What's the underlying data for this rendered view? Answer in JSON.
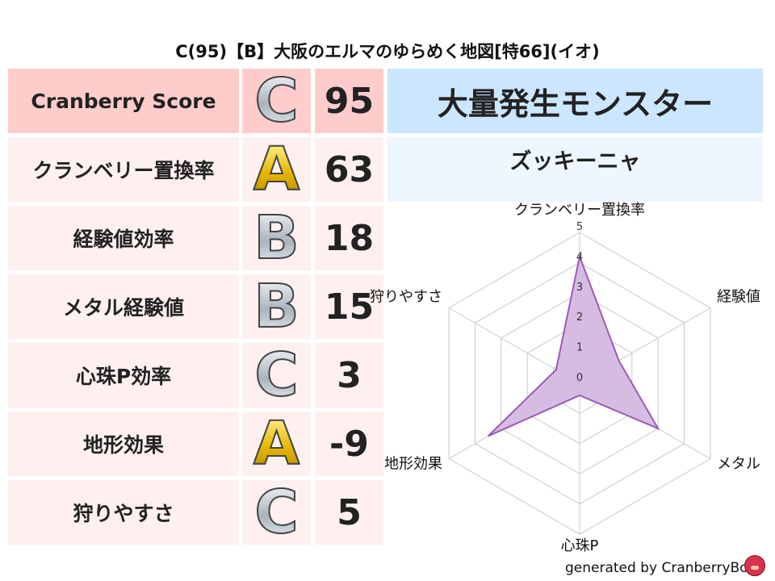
{
  "title": "C(95)【B】大阪のエルマのゆらめく地図[特66](イオ)",
  "rows": [
    {
      "label": "Cranberry Score",
      "grade": "C",
      "value": "95",
      "bg": "#ffcccc"
    },
    {
      "label": "クランベリー置換率",
      "grade": "A",
      "value": "63",
      "bg": "#fff0f0"
    },
    {
      "label": "経験値効率",
      "grade": "B",
      "value": "18",
      "bg": "#fff0f0"
    },
    {
      "label": "メタル経験値",
      "grade": "B",
      "value": "15",
      "bg": "#fff0f0"
    },
    {
      "label": "心珠P効率",
      "grade": "C",
      "value": "3",
      "bg": "#fff0f0"
    },
    {
      "label": "地形効果",
      "grade": "A",
      "value": "-9",
      "bg": "#fff0f0"
    },
    {
      "label": "狩りやすさ",
      "grade": "C",
      "value": "5",
      "bg": "#fff0f0"
    }
  ],
  "monster_header": "大量発生モンスター",
  "monster_name": "ズッキーニャ",
  "footer": "generated by CranberryBot",
  "chart_data": {
    "type": "radar",
    "axes": [
      "クランベリー置換率",
      "経験値",
      "メタル",
      "心珠P",
      "地形効果",
      "狩りやすさ"
    ],
    "values": [
      4.2,
      1.5,
      3.0,
      0.4,
      3.5,
      0.9
    ],
    "range": [
      0,
      5
    ],
    "ticks": [
      "0",
      "1",
      "2",
      "3",
      "4",
      "5"
    ],
    "fill": "#d4b8e0",
    "stroke": "#9b59b6"
  }
}
